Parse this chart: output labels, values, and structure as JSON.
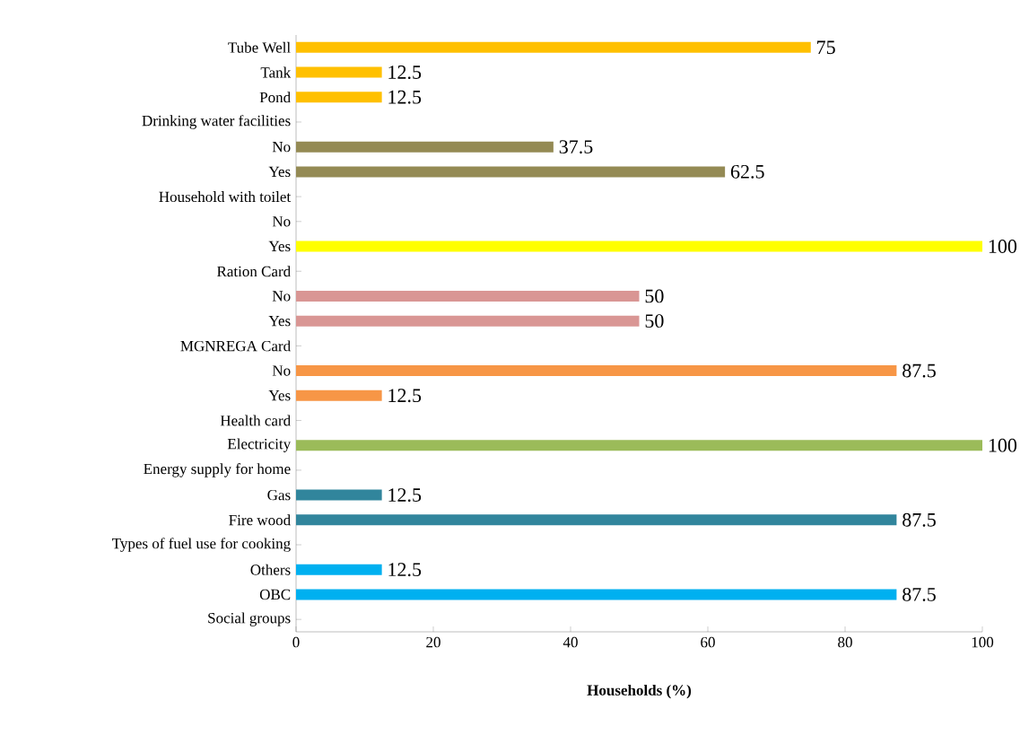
{
  "chart_data": {
    "type": "bar",
    "orientation": "horizontal",
    "xlabel": "Households (%)",
    "categories": [
      "Tube Well",
      "Tank",
      "Pond",
      "Drinking water facilities",
      "No",
      "Yes",
      "Household with toilet",
      "No",
      "Yes",
      "Ration Card",
      "No",
      "Yes",
      "MGNREGA Card",
      "No",
      "Yes",
      "Health card",
      "Electricity",
      "Energy supply for home",
      "Gas",
      "Fire wood",
      "Types of fuel use for cooking",
      "Others",
      "OBC",
      "Social groups"
    ],
    "values": [
      75,
      12.5,
      12.5,
      null,
      37.5,
      62.5,
      null,
      null,
      100,
      null,
      50,
      50,
      null,
      87.5,
      12.5,
      null,
      100,
      null,
      12.5,
      87.5,
      null,
      12.5,
      87.5,
      null
    ],
    "colors": [
      "#ffc000",
      "#ffc000",
      "#ffc000",
      null,
      "#948a54",
      "#948a54",
      null,
      null,
      "#ffff00",
      null,
      "#d99694",
      "#d99694",
      null,
      "#f79646",
      "#f79646",
      null,
      "#9bbb59",
      null,
      "#31859c",
      "#31859c",
      null,
      "#00b0f0",
      "#00b0f0",
      null
    ],
    "value_labels": [
      "75",
      "12.5",
      "12.5",
      null,
      "37.5",
      "62.5",
      null,
      null,
      "100",
      null,
      "50",
      "50",
      null,
      "87.5",
      "12.5",
      null,
      "100",
      null,
      "12.5",
      "87.5",
      null,
      "12.5",
      "87.5",
      null
    ],
    "xlim": [
      0,
      100
    ],
    "xticks": [
      0,
      20,
      40,
      60,
      80,
      100
    ],
    "grid": false
  }
}
